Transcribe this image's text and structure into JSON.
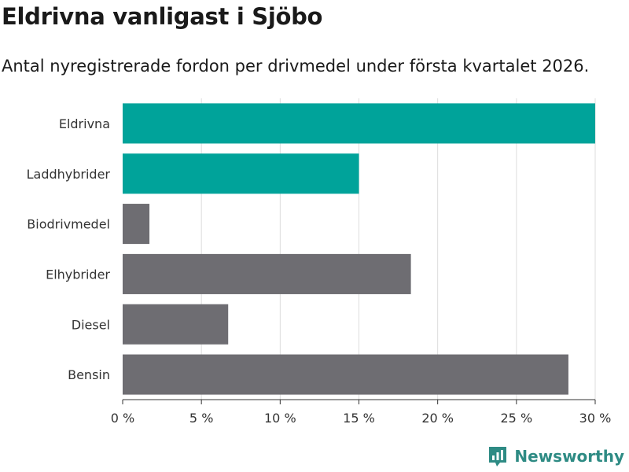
{
  "header": {
    "title": "Eldrivna vanligast i Sjöbo",
    "subtitle": "Antal nyregistrerade fordon per drivmedel under första kvartalet 2026."
  },
  "brand": {
    "name": "Newsworthy",
    "icon": "newsworthy-logo-icon"
  },
  "colors": {
    "highlight": "#00a39a",
    "default": "#6e6d72",
    "grid": "#dddddd",
    "axis": "#333333"
  },
  "chart_data": {
    "type": "bar",
    "orientation": "horizontal",
    "title": "Eldrivna vanligast i Sjöbo",
    "subtitle": "Antal nyregistrerade fordon per drivmedel under första kvartalet 2026.",
    "categories": [
      "Eldrivna",
      "Laddhybrider",
      "Biodrivmedel",
      "Elhybrider",
      "Diesel",
      "Bensin"
    ],
    "values": [
      30.0,
      15.0,
      1.7,
      18.3,
      6.7,
      28.3
    ],
    "highlighted": [
      true,
      true,
      false,
      false,
      false,
      false
    ],
    "xlim": [
      0,
      30
    ],
    "xticks": [
      0,
      5,
      10,
      15,
      20,
      25,
      30
    ],
    "tick_labels": [
      "0 %",
      "5 %",
      "10 %",
      "15 %",
      "20 %",
      "25 %",
      "30 %"
    ],
    "xlabel": "",
    "ylabel": "",
    "grid": true
  }
}
